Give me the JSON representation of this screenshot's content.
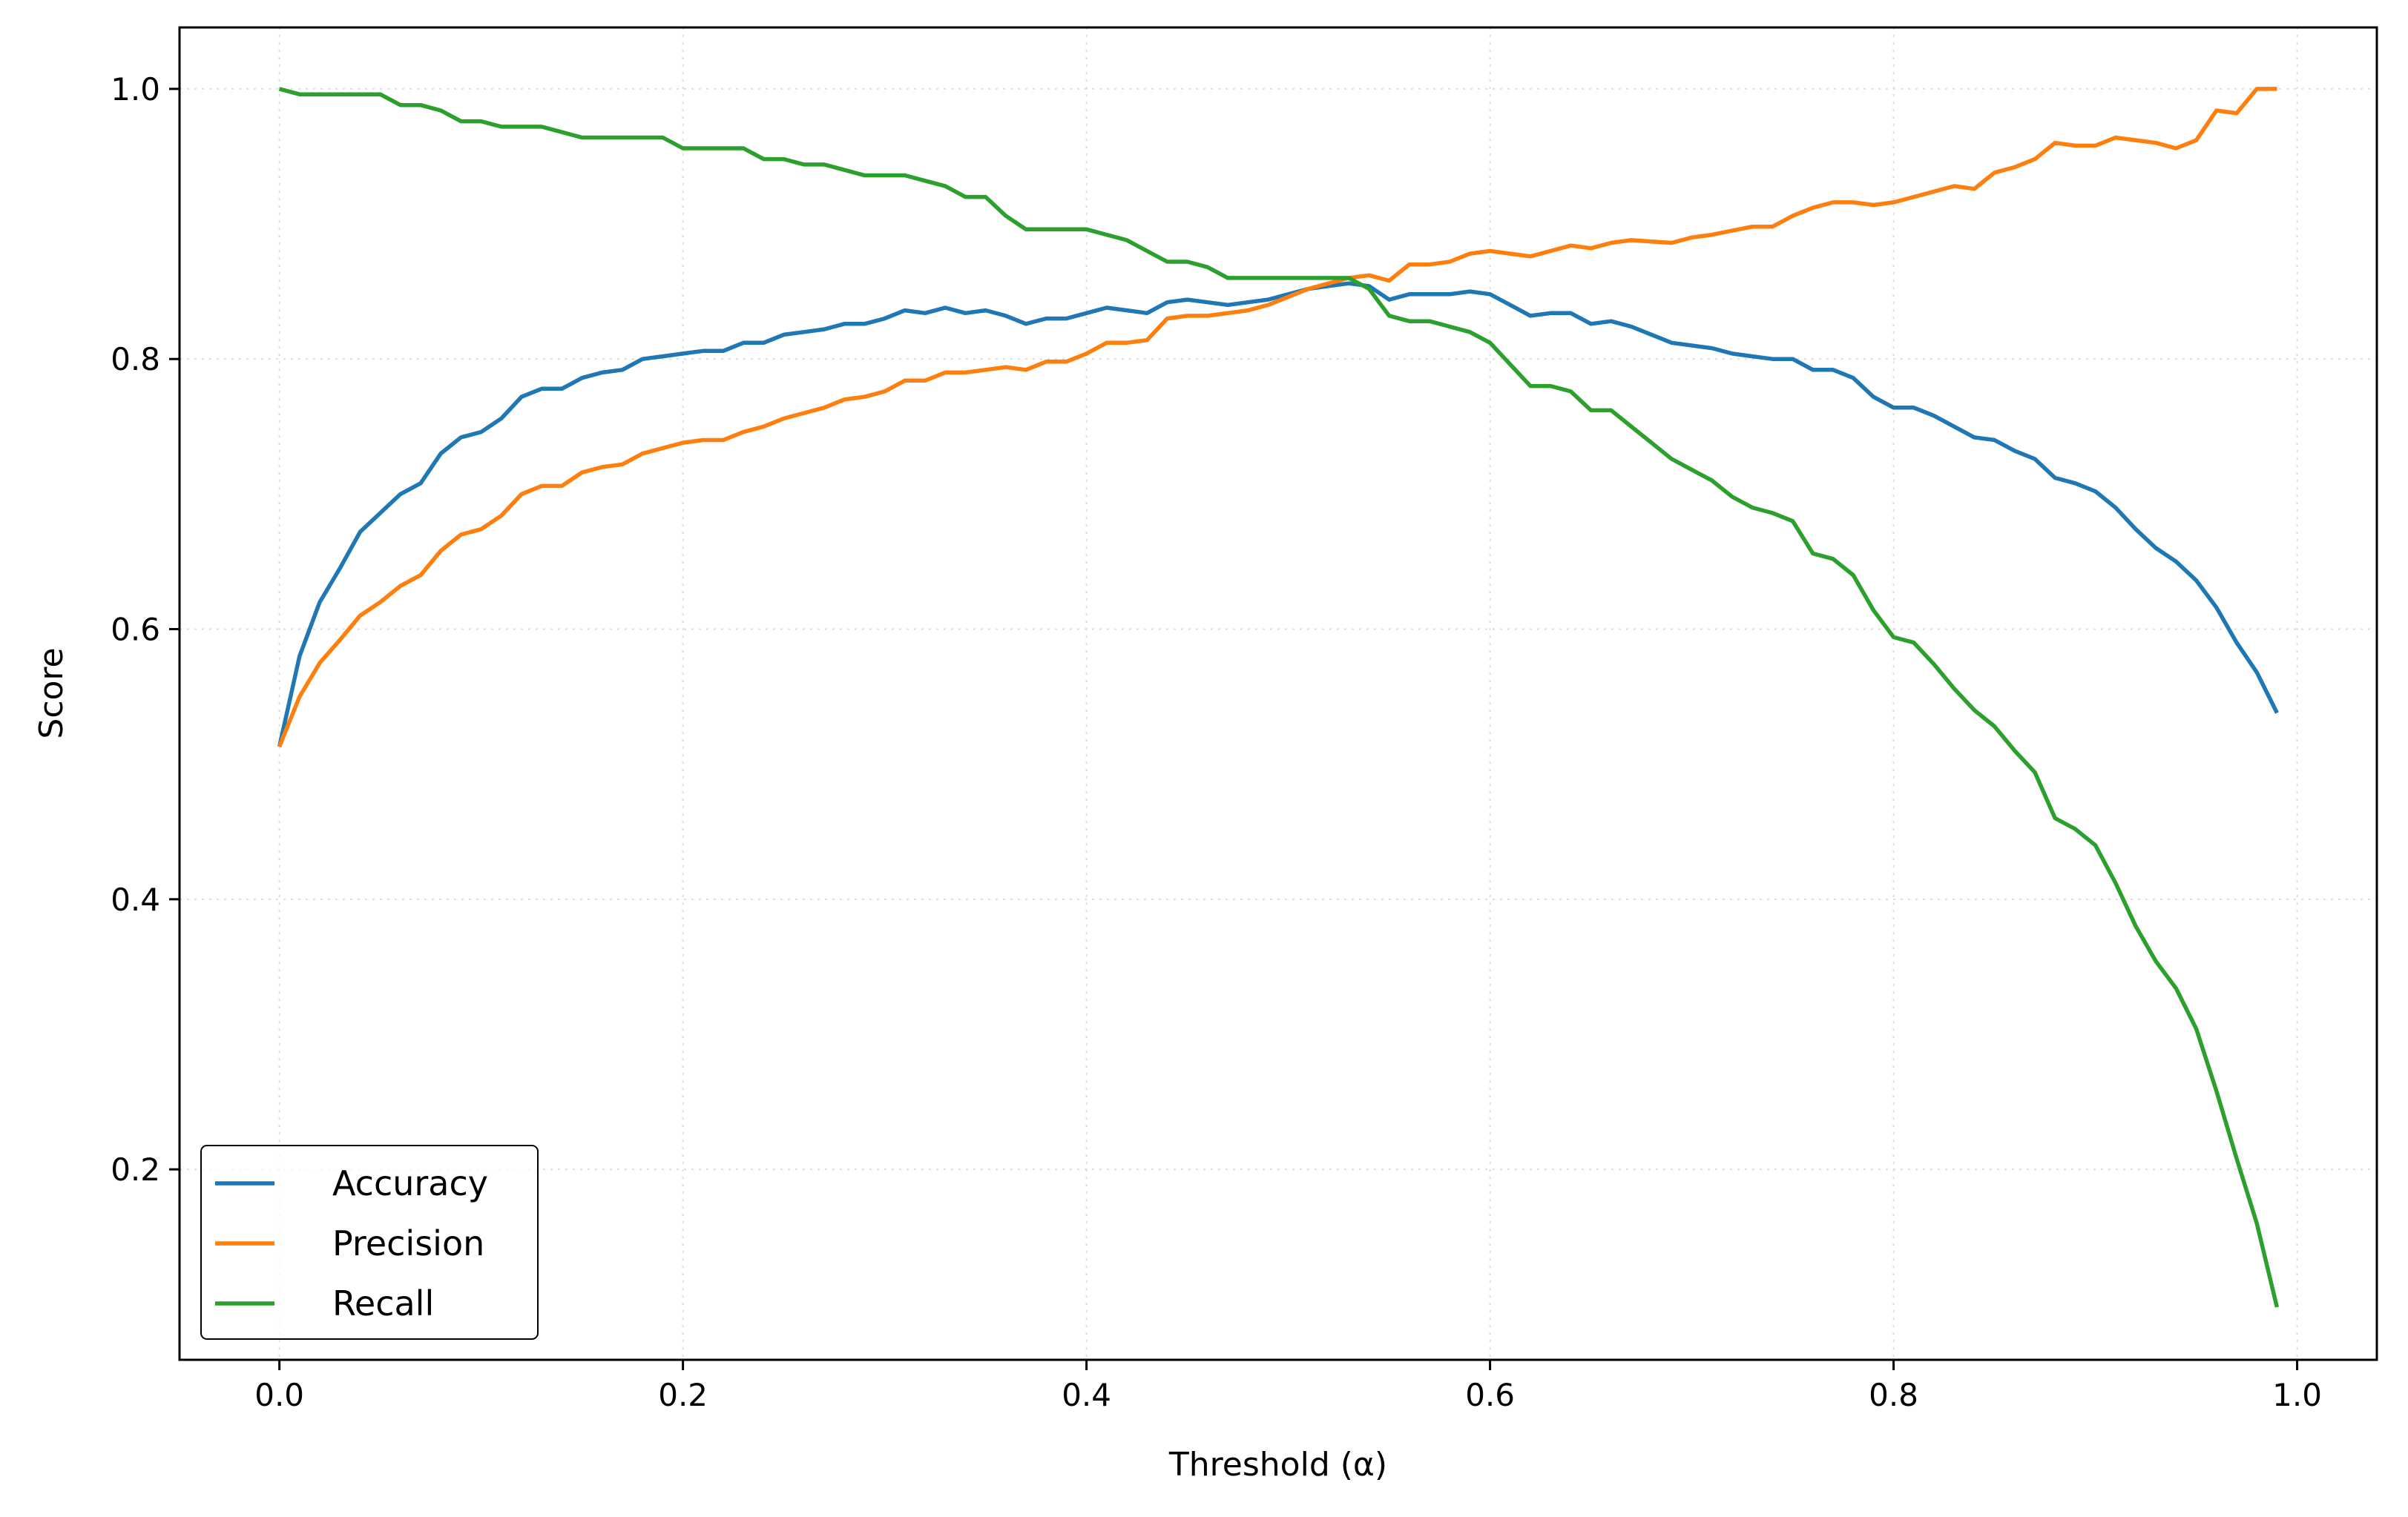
{
  "chart_data": {
    "type": "line",
    "title": "",
    "xlabel": "Threshold (α)",
    "ylabel": "Score",
    "xlim": [
      -0.0495,
      1.0395
    ],
    "ylim": [
      0.059,
      1.0455
    ],
    "xticks": [
      0.0,
      0.2,
      0.4,
      0.6,
      0.8,
      1.0
    ],
    "xtick_labels": [
      "0.0",
      "0.2",
      "0.4",
      "0.6",
      "0.8",
      "1.0"
    ],
    "yticks": [
      0.2,
      0.4,
      0.6,
      0.8,
      1.0
    ],
    "ytick_labels": [
      "0.2",
      "0.4",
      "0.6",
      "0.8",
      "1.0"
    ],
    "grid": true,
    "legend_position": "lower-left",
    "x_start": 0.0,
    "x_step": 0.01,
    "series": [
      {
        "name": "Accuracy",
        "color": "#1f77b4",
        "values": [
          0.513,
          0.58,
          0.62,
          0.645,
          0.672,
          0.686,
          0.7,
          0.708,
          0.73,
          0.742,
          0.746,
          0.756,
          0.772,
          0.778,
          0.778,
          0.786,
          0.79,
          0.792,
          0.8,
          0.802,
          0.804,
          0.806,
          0.806,
          0.812,
          0.812,
          0.818,
          0.82,
          0.822,
          0.826,
          0.826,
          0.83,
          0.836,
          0.834,
          0.838,
          0.834,
          0.836,
          0.832,
          0.826,
          0.83,
          0.83,
          0.834,
          0.838,
          0.836,
          0.834,
          0.842,
          0.844,
          0.842,
          0.84,
          0.842,
          0.844,
          0.848,
          0.852,
          0.854,
          0.856,
          0.854,
          0.844,
          0.848,
          0.848,
          0.848,
          0.85,
          0.848,
          0.84,
          0.832,
          0.834,
          0.834,
          0.826,
          0.828,
          0.824,
          0.818,
          0.812,
          0.81,
          0.808,
          0.804,
          0.802,
          0.8,
          0.8,
          0.792,
          0.792,
          0.786,
          0.772,
          0.764,
          0.764,
          0.758,
          0.75,
          0.742,
          0.74,
          0.732,
          0.726,
          0.712,
          0.708,
          0.702,
          0.69,
          0.674,
          0.66,
          0.65,
          0.636,
          0.616,
          0.59,
          0.568,
          0.538
        ]
      },
      {
        "name": "Precision",
        "color": "#ff7f0e",
        "values": [
          0.513,
          0.55,
          0.575,
          0.592,
          0.61,
          0.62,
          0.632,
          0.64,
          0.658,
          0.67,
          0.674,
          0.684,
          0.7,
          0.706,
          0.706,
          0.716,
          0.72,
          0.722,
          0.73,
          0.734,
          0.738,
          0.74,
          0.74,
          0.746,
          0.75,
          0.756,
          0.76,
          0.764,
          0.77,
          0.772,
          0.776,
          0.784,
          0.784,
          0.79,
          0.79,
          0.792,
          0.794,
          0.792,
          0.798,
          0.798,
          0.804,
          0.812,
          0.812,
          0.814,
          0.83,
          0.832,
          0.832,
          0.834,
          0.836,
          0.84,
          0.846,
          0.852,
          0.856,
          0.86,
          0.862,
          0.858,
          0.87,
          0.87,
          0.872,
          0.878,
          0.88,
          0.878,
          0.876,
          0.88,
          0.884,
          0.882,
          0.886,
          0.888,
          0.887,
          0.886,
          0.89,
          0.892,
          0.895,
          0.898,
          0.898,
          0.906,
          0.912,
          0.916,
          0.916,
          0.914,
          0.916,
          0.92,
          0.924,
          0.928,
          0.926,
          0.938,
          0.942,
          0.948,
          0.96,
          0.958,
          0.958,
          0.964,
          0.962,
          0.96,
          0.956,
          0.962,
          0.984,
          0.982,
          1.0,
          1.0
        ]
      },
      {
        "name": "Recall",
        "color": "#2ca02c",
        "values": [
          1.0,
          0.996,
          0.996,
          0.996,
          0.996,
          0.996,
          0.988,
          0.988,
          0.984,
          0.976,
          0.976,
          0.972,
          0.972,
          0.972,
          0.968,
          0.964,
          0.964,
          0.964,
          0.964,
          0.964,
          0.956,
          0.956,
          0.956,
          0.956,
          0.948,
          0.948,
          0.944,
          0.944,
          0.94,
          0.936,
          0.936,
          0.936,
          0.932,
          0.928,
          0.92,
          0.92,
          0.906,
          0.896,
          0.896,
          0.896,
          0.896,
          0.892,
          0.888,
          0.88,
          0.872,
          0.872,
          0.868,
          0.86,
          0.86,
          0.86,
          0.86,
          0.86,
          0.86,
          0.86,
          0.852,
          0.832,
          0.828,
          0.828,
          0.824,
          0.82,
          0.812,
          0.796,
          0.78,
          0.78,
          0.776,
          0.762,
          0.762,
          0.75,
          0.738,
          0.726,
          0.718,
          0.71,
          0.698,
          0.69,
          0.686,
          0.68,
          0.656,
          0.652,
          0.64,
          0.614,
          0.594,
          0.59,
          0.574,
          0.556,
          0.54,
          0.528,
          0.51,
          0.494,
          0.46,
          0.452,
          0.44,
          0.412,
          0.38,
          0.354,
          0.334,
          0.304,
          0.258,
          0.208,
          0.16,
          0.098
        ]
      }
    ]
  }
}
